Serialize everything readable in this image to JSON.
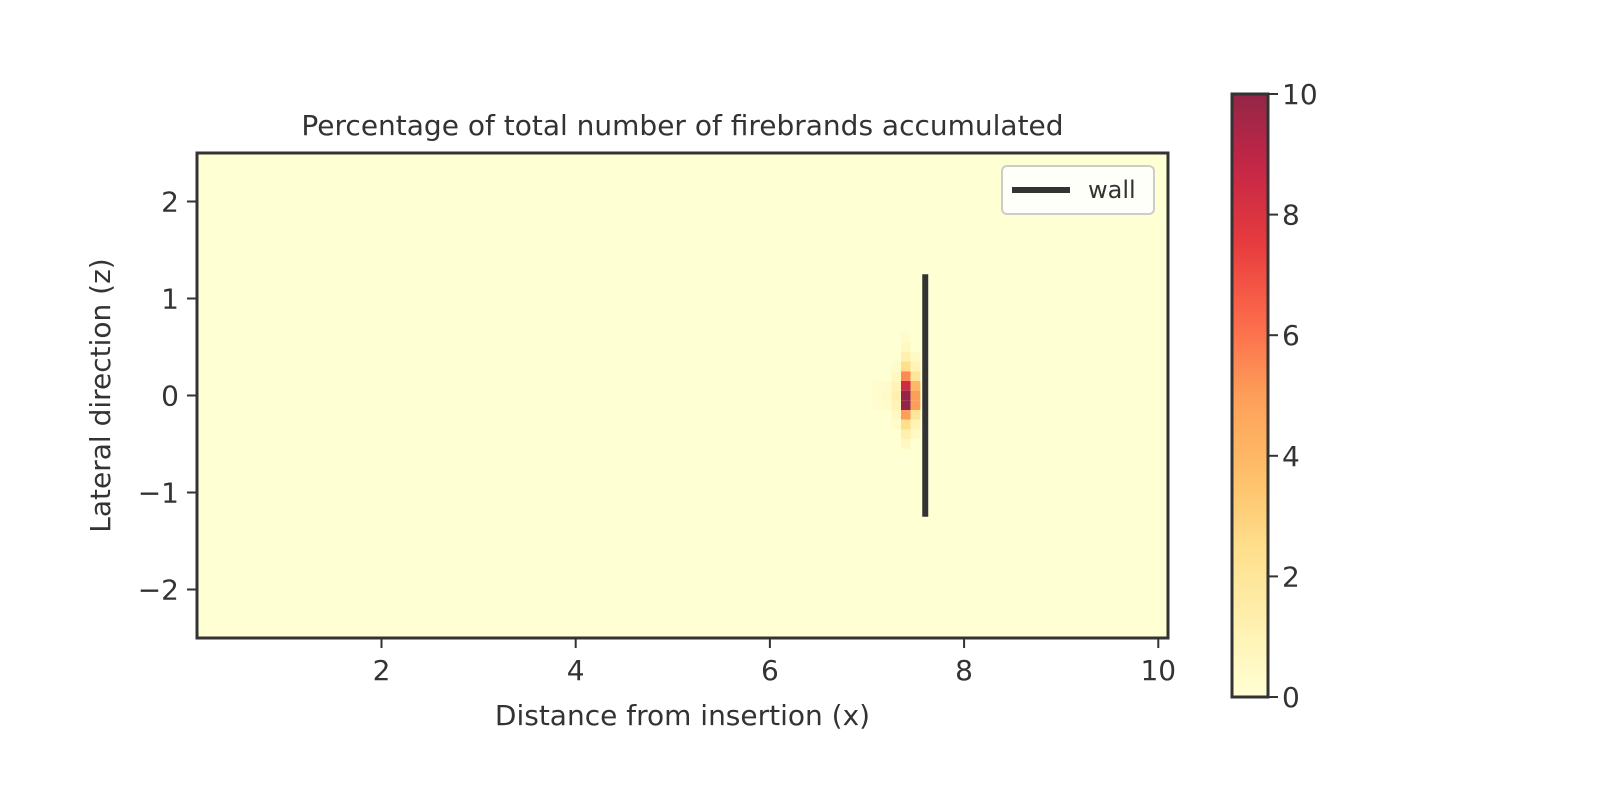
{
  "chart_data": {
    "type": "heatmap",
    "title": "Percentage of total number of firebrands accumulated",
    "xlabel": "Distance from insertion (x)",
    "ylabel": "Lateral direction (z)",
    "xlim": [
      0.1,
      10.1
    ],
    "ylim": [
      -2.5,
      2.5
    ],
    "x_ticks": [
      2,
      4,
      6,
      8,
      10
    ],
    "x_tick_labels": [
      "2",
      "4",
      "6",
      "8",
      "10"
    ],
    "y_ticks": [
      2,
      1,
      0,
      -1,
      -2
    ],
    "y_tick_labels": [
      "2",
      "1",
      "0",
      "−1",
      "−2"
    ],
    "grid": false,
    "colorbar": {
      "range": [
        0,
        10
      ],
      "ticks": [
        10,
        8,
        6,
        4,
        2,
        0
      ],
      "tick_labels": [
        "10",
        "8",
        "6",
        "4",
        "2",
        "0"
      ],
      "colormap": "YlOrRd",
      "stops": [
        "#ffffcc",
        "#ffeda0",
        "#fed976",
        "#feb24c",
        "#fd8d3c",
        "#fc4e2a",
        "#e31a1c",
        "#bd0026",
        "#800026"
      ],
      "alpha": 0.85
    },
    "cell_size": [
      0.1,
      0.1
    ],
    "background_value": 0,
    "cells": [
      {
        "x": 7.4,
        "z": -0.1,
        "v": 10
      },
      {
        "x": 7.4,
        "z": 0.0,
        "v": 10
      },
      {
        "x": 7.4,
        "z": 0.1,
        "v": 8.5
      },
      {
        "x": 7.4,
        "z": 0.2,
        "v": 5.5
      },
      {
        "x": 7.4,
        "z": 0.3,
        "v": 2.5
      },
      {
        "x": 7.4,
        "z": 0.4,
        "v": 1.2
      },
      {
        "x": 7.4,
        "z": 0.5,
        "v": 0.6
      },
      {
        "x": 7.4,
        "z": 0.6,
        "v": 0.3
      },
      {
        "x": 7.4,
        "z": -0.2,
        "v": 5.0
      },
      {
        "x": 7.4,
        "z": -0.3,
        "v": 2.5
      },
      {
        "x": 7.4,
        "z": -0.4,
        "v": 1.2
      },
      {
        "x": 7.4,
        "z": -0.5,
        "v": 0.6
      },
      {
        "x": 7.5,
        "z": -0.1,
        "v": 5.0
      },
      {
        "x": 7.5,
        "z": 0.0,
        "v": 5.0
      },
      {
        "x": 7.5,
        "z": 0.1,
        "v": 4.0
      },
      {
        "x": 7.5,
        "z": 0.2,
        "v": 2.0
      },
      {
        "x": 7.5,
        "z": -0.2,
        "v": 2.0
      },
      {
        "x": 7.5,
        "z": 0.3,
        "v": 1.0
      },
      {
        "x": 7.5,
        "z": -0.3,
        "v": 1.0
      },
      {
        "x": 7.5,
        "z": 0.4,
        "v": 0.5
      },
      {
        "x": 7.5,
        "z": -0.4,
        "v": 0.5
      },
      {
        "x": 7.3,
        "z": -0.1,
        "v": 1.0
      },
      {
        "x": 7.3,
        "z": 0.0,
        "v": 1.2
      },
      {
        "x": 7.3,
        "z": 0.1,
        "v": 1.0
      },
      {
        "x": 7.3,
        "z": 0.2,
        "v": 0.6
      },
      {
        "x": 7.3,
        "z": -0.2,
        "v": 0.6
      },
      {
        "x": 7.3,
        "z": 0.3,
        "v": 0.3
      },
      {
        "x": 7.3,
        "z": -0.3,
        "v": 0.3
      },
      {
        "x": 7.2,
        "z": 0.0,
        "v": 0.4
      },
      {
        "x": 7.2,
        "z": 0.1,
        "v": 0.3
      },
      {
        "x": 7.2,
        "z": -0.1,
        "v": 0.3
      },
      {
        "x": 7.1,
        "z": 0.0,
        "v": 0.2
      },
      {
        "x": 7.1,
        "z": 0.1,
        "v": 0.15
      },
      {
        "x": 7.1,
        "z": -0.1,
        "v": 0.15
      }
    ],
    "lines": [
      {
        "name": "wall",
        "x": [
          7.6,
          7.6
        ],
        "z": [
          -1.25,
          1.25
        ],
        "color": "#333333"
      }
    ],
    "legend": {
      "placement": "upper right",
      "entries": [
        "wall"
      ]
    }
  }
}
